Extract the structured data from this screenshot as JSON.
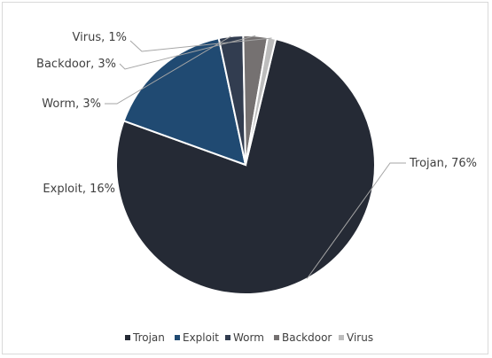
{
  "chart_data": {
    "type": "pie",
    "title": "",
    "categories": [
      "Trojan",
      "Exploit",
      "Worm",
      "Backdoor",
      "Virus"
    ],
    "values": [
      76,
      16,
      3,
      3,
      1
    ],
    "labels": [
      "Trojan, 76%",
      "Exploit, 16%",
      "Worm, 3%",
      "Backdoor, 3%",
      "Virus, 1%"
    ],
    "colors": [
      "#252a35",
      "#204a72",
      "#323d50",
      "#757171",
      "#bdbdbd"
    ],
    "legend": {
      "position": "bottom",
      "entries": [
        "Trojan",
        "Exploit",
        "Worm",
        "Backdoor",
        "Virus"
      ]
    }
  }
}
